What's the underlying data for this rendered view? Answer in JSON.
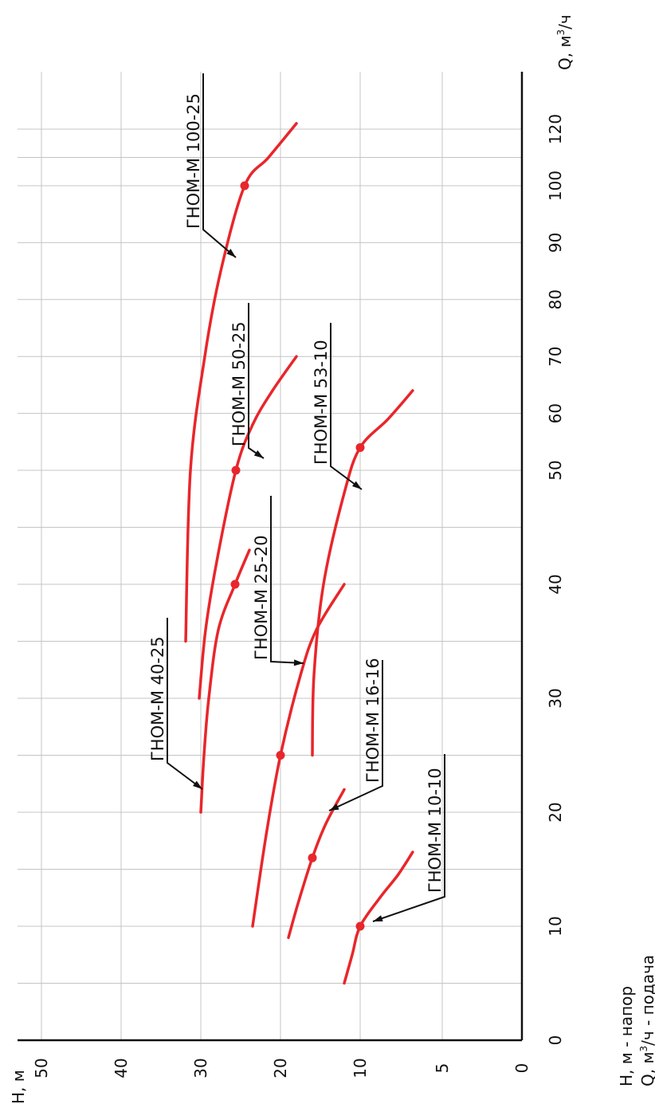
{
  "chart_data": {
    "type": "line",
    "xlabel": "Q, м³/ч",
    "ylabel": "Н, м",
    "x_ticks": [
      0,
      10,
      20,
      30,
      40,
      50,
      60,
      70,
      80,
      90,
      100,
      120
    ],
    "y_ticks": [
      {
        "label": "0"
      },
      {
        "label": "5"
      },
      {
        "label": "10"
      },
      {
        "label": "20"
      },
      {
        "label": "30"
      },
      {
        "label": "40"
      },
      {
        "label": "50"
      }
    ],
    "grid": true,
    "legend_note": [
      "Н, м - напор",
      "Q, м³/ч - подача"
    ],
    "series": [
      {
        "name": "ГНОМ-М 10-10",
        "x": [
          5,
          7.5,
          10,
          12.5,
          14.5,
          16.5
        ],
        "y": [
          12,
          11,
          10,
          8.8,
          7.7,
          6.8
        ],
        "point": [
          10,
          10
        ]
      },
      {
        "name": "ГНОМ-М 16-16",
        "x": [
          9,
          12,
          16,
          19,
          22
        ],
        "y": [
          19,
          17.8,
          16,
          14.3,
          12
        ],
        "point": [
          16,
          16
        ]
      },
      {
        "name": "ГНОМ-М 25-20",
        "x": [
          10,
          18,
          25,
          32,
          36,
          40
        ],
        "y": [
          23.5,
          21.8,
          20,
          17.5,
          15.5,
          12
        ],
        "point": [
          25,
          20
        ]
      },
      {
        "name": "ГНОМ-М 40-25",
        "x": [
          20,
          25,
          30,
          36,
          40,
          43
        ],
        "y": [
          30,
          29.6,
          29,
          27.8,
          25.7,
          23.9
        ],
        "point": [
          40,
          25.7
        ]
      },
      {
        "name": "ГНОМ-М 50-25",
        "x": [
          30,
          36,
          42,
          50,
          58,
          64,
          70
        ],
        "y": [
          30.2,
          29.4,
          28,
          25.6,
          23.5,
          21,
          18
        ],
        "point": [
          50,
          25.6
        ]
      },
      {
        "name": "ГНОМ-М 53-10",
        "x": [
          25,
          32,
          40,
          48,
          54,
          59,
          64
        ],
        "y": [
          16,
          15.8,
          14.6,
          12,
          10,
          8.3,
          6.8
        ],
        "point": [
          54,
          10
        ]
      },
      {
        "name": "ГНОМ-М 100-25",
        "x": [
          35,
          50,
          70,
          85,
          100,
          110,
          122
        ],
        "y": [
          31.9,
          31.3,
          29.5,
          27.5,
          24.5,
          21.5,
          18
        ],
        "point": [
          100,
          24.5
        ]
      }
    ]
  },
  "colors": {
    "curve": "#e8262b",
    "axis": "#111111",
    "grid": "#c4c4c4"
  }
}
